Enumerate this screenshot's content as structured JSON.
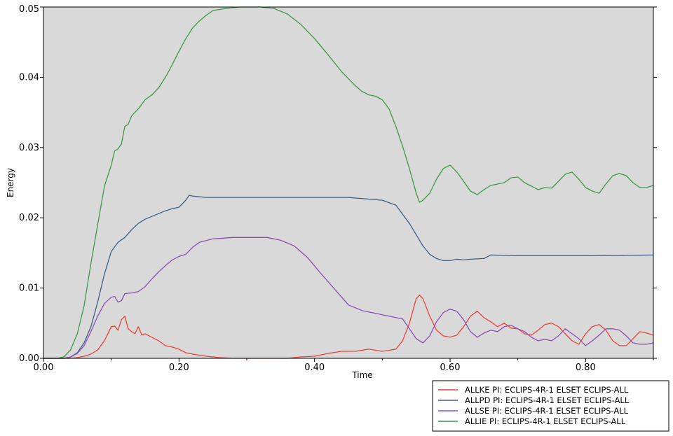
{
  "chart_data": {
    "type": "line",
    "xlabel": "Time",
    "ylabel": "Energy",
    "xlim": [
      0,
      0.9
    ],
    "ylim": [
      0,
      0.05
    ],
    "xticks": [
      "0.00",
      "0.20",
      "0.40",
      "0.60",
      "0.80"
    ],
    "xtick_values": [
      0,
      0.2,
      0.4,
      0.6,
      0.8
    ],
    "yticks": [
      "0.00",
      "0.01",
      "0.02",
      "0.03",
      "0.04",
      "0.05"
    ],
    "ytick_values": [
      0,
      0.01,
      0.02,
      0.03,
      0.04,
      0.05
    ],
    "legend_position": "bottom-right",
    "grid": false,
    "background": "#d9d9d9",
    "series": [
      {
        "name": "ALLKE PI: ECLIPS-4R-1 ELSET ECLIPS-ALL",
        "color": "#e8433a",
        "points": [
          [
            0,
            0
          ],
          [
            0.04,
            0
          ],
          [
            0.05,
            0.0001
          ],
          [
            0.06,
            0.0003
          ],
          [
            0.07,
            0.0006
          ],
          [
            0.08,
            0.0012
          ],
          [
            0.09,
            0.0025
          ],
          [
            0.1,
            0.0045
          ],
          [
            0.105,
            0.0046
          ],
          [
            0.11,
            0.004
          ],
          [
            0.115,
            0.0055
          ],
          [
            0.12,
            0.006
          ],
          [
            0.125,
            0.0042
          ],
          [
            0.13,
            0.0038
          ],
          [
            0.135,
            0.0035
          ],
          [
            0.14,
            0.0045
          ],
          [
            0.145,
            0.0033
          ],
          [
            0.15,
            0.0035
          ],
          [
            0.16,
            0.003
          ],
          [
            0.17,
            0.0025
          ],
          [
            0.18,
            0.0018
          ],
          [
            0.19,
            0.0016
          ],
          [
            0.2,
            0.0013
          ],
          [
            0.21,
            0.0008
          ],
          [
            0.22,
            0.0006
          ],
          [
            0.24,
            0.0003
          ],
          [
            0.26,
            0.0001
          ],
          [
            0.28,
            0
          ],
          [
            0.36,
            0
          ],
          [
            0.38,
            0.0002
          ],
          [
            0.4,
            0.0003
          ],
          [
            0.42,
            0.0007
          ],
          [
            0.44,
            0.001
          ],
          [
            0.46,
            0.001
          ],
          [
            0.48,
            0.0013
          ],
          [
            0.5,
            0.001
          ],
          [
            0.52,
            0.0013
          ],
          [
            0.53,
            0.0025
          ],
          [
            0.54,
            0.005
          ],
          [
            0.55,
            0.0085
          ],
          [
            0.555,
            0.009
          ],
          [
            0.56,
            0.0085
          ],
          [
            0.57,
            0.006
          ],
          [
            0.58,
            0.004
          ],
          [
            0.59,
            0.0032
          ],
          [
            0.6,
            0.003
          ],
          [
            0.61,
            0.0033
          ],
          [
            0.62,
            0.0045
          ],
          [
            0.63,
            0.006
          ],
          [
            0.64,
            0.0067
          ],
          [
            0.65,
            0.0058
          ],
          [
            0.66,
            0.0052
          ],
          [
            0.67,
            0.0045
          ],
          [
            0.68,
            0.005
          ],
          [
            0.69,
            0.0043
          ],
          [
            0.7,
            0.0042
          ],
          [
            0.71,
            0.0035
          ],
          [
            0.72,
            0.0033
          ],
          [
            0.73,
            0.004
          ],
          [
            0.74,
            0.0048
          ],
          [
            0.75,
            0.005
          ],
          [
            0.76,
            0.0045
          ],
          [
            0.77,
            0.0035
          ],
          [
            0.78,
            0.0025
          ],
          [
            0.79,
            0.002
          ],
          [
            0.8,
            0.0035
          ],
          [
            0.81,
            0.0045
          ],
          [
            0.82,
            0.0048
          ],
          [
            0.83,
            0.004
          ],
          [
            0.84,
            0.0025
          ],
          [
            0.85,
            0.0018
          ],
          [
            0.86,
            0.0018
          ],
          [
            0.87,
            0.0028
          ],
          [
            0.88,
            0.0038
          ],
          [
            0.89,
            0.0036
          ],
          [
            0.9,
            0.0033
          ]
        ]
      },
      {
        "name": "ALLPD PI: ECLIPS-4R-1 ELSET ECLIPS-ALL",
        "color": "#3f5f85",
        "points": [
          [
            0,
            0
          ],
          [
            0.03,
            0
          ],
          [
            0.04,
            0.0002
          ],
          [
            0.05,
            0.0008
          ],
          [
            0.06,
            0.0022
          ],
          [
            0.07,
            0.0045
          ],
          [
            0.08,
            0.008
          ],
          [
            0.09,
            0.012
          ],
          [
            0.1,
            0.0152
          ],
          [
            0.11,
            0.0165
          ],
          [
            0.12,
            0.0172
          ],
          [
            0.13,
            0.0183
          ],
          [
            0.14,
            0.0192
          ],
          [
            0.15,
            0.0198
          ],
          [
            0.16,
            0.0202
          ],
          [
            0.17,
            0.0206
          ],
          [
            0.18,
            0.021
          ],
          [
            0.19,
            0.0213
          ],
          [
            0.2,
            0.0215
          ],
          [
            0.21,
            0.0225
          ],
          [
            0.215,
            0.0232
          ],
          [
            0.22,
            0.0231
          ],
          [
            0.24,
            0.0229
          ],
          [
            0.3,
            0.0229
          ],
          [
            0.4,
            0.0229
          ],
          [
            0.45,
            0.0229
          ],
          [
            0.5,
            0.0225
          ],
          [
            0.52,
            0.0218
          ],
          [
            0.54,
            0.0192
          ],
          [
            0.56,
            0.016
          ],
          [
            0.57,
            0.0148
          ],
          [
            0.58,
            0.0142
          ],
          [
            0.59,
            0.0139
          ],
          [
            0.6,
            0.0139
          ],
          [
            0.61,
            0.0141
          ],
          [
            0.62,
            0.014
          ],
          [
            0.63,
            0.0141
          ],
          [
            0.65,
            0.0142
          ],
          [
            0.66,
            0.0147
          ],
          [
            0.7,
            0.0146
          ],
          [
            0.8,
            0.0146
          ],
          [
            0.9,
            0.0147
          ]
        ]
      },
      {
        "name": "ALLSE PI: ECLIPS-4R-1 ELSET ECLIPS-ALL",
        "color": "#8b4fb5",
        "points": [
          [
            0,
            0
          ],
          [
            0.03,
            0
          ],
          [
            0.04,
            0.0002
          ],
          [
            0.05,
            0.0007
          ],
          [
            0.06,
            0.0018
          ],
          [
            0.07,
            0.0038
          ],
          [
            0.08,
            0.006
          ],
          [
            0.09,
            0.0078
          ],
          [
            0.1,
            0.0087
          ],
          [
            0.105,
            0.0088
          ],
          [
            0.11,
            0.008
          ],
          [
            0.115,
            0.0082
          ],
          [
            0.12,
            0.0092
          ],
          [
            0.13,
            0.0093
          ],
          [
            0.14,
            0.0095
          ],
          [
            0.15,
            0.0102
          ],
          [
            0.16,
            0.0113
          ],
          [
            0.17,
            0.0123
          ],
          [
            0.18,
            0.0132
          ],
          [
            0.19,
            0.014
          ],
          [
            0.2,
            0.0145
          ],
          [
            0.21,
            0.0148
          ],
          [
            0.22,
            0.0158
          ],
          [
            0.23,
            0.0165
          ],
          [
            0.25,
            0.017
          ],
          [
            0.28,
            0.0172
          ],
          [
            0.33,
            0.0172
          ],
          [
            0.35,
            0.0168
          ],
          [
            0.37,
            0.016
          ],
          [
            0.39,
            0.0143
          ],
          [
            0.41,
            0.012
          ],
          [
            0.43,
            0.0098
          ],
          [
            0.45,
            0.0076
          ],
          [
            0.47,
            0.0068
          ],
          [
            0.49,
            0.0064
          ],
          [
            0.51,
            0.006
          ],
          [
            0.53,
            0.0056
          ],
          [
            0.54,
            0.0042
          ],
          [
            0.55,
            0.0028
          ],
          [
            0.56,
            0.0022
          ],
          [
            0.57,
            0.0032
          ],
          [
            0.58,
            0.0052
          ],
          [
            0.59,
            0.0065
          ],
          [
            0.6,
            0.007
          ],
          [
            0.61,
            0.0067
          ],
          [
            0.62,
            0.0055
          ],
          [
            0.63,
            0.0038
          ],
          [
            0.64,
            0.003
          ],
          [
            0.65,
            0.0036
          ],
          [
            0.66,
            0.004
          ],
          [
            0.67,
            0.0038
          ],
          [
            0.68,
            0.0045
          ],
          [
            0.69,
            0.0047
          ],
          [
            0.7,
            0.0042
          ],
          [
            0.71,
            0.0038
          ],
          [
            0.72,
            0.003
          ],
          [
            0.73,
            0.0025
          ],
          [
            0.74,
            0.0027
          ],
          [
            0.75,
            0.0025
          ],
          [
            0.76,
            0.0032
          ],
          [
            0.77,
            0.0042
          ],
          [
            0.78,
            0.0035
          ],
          [
            0.79,
            0.0028
          ],
          [
            0.8,
            0.0018
          ],
          [
            0.81,
            0.0025
          ],
          [
            0.82,
            0.0033
          ],
          [
            0.83,
            0.0042
          ],
          [
            0.84,
            0.0042
          ],
          [
            0.85,
            0.004
          ],
          [
            0.86,
            0.0032
          ],
          [
            0.87,
            0.0022
          ],
          [
            0.88,
            0.002
          ],
          [
            0.89,
            0.002
          ],
          [
            0.9,
            0.0022
          ]
        ]
      },
      {
        "name": "ALLIE PI: ECLIPS-4R-1 ELSET ECLIPS-ALL",
        "color": "#3e9a45",
        "points": [
          [
            0,
            0
          ],
          [
            0.02,
            0
          ],
          [
            0.03,
            0.0002
          ],
          [
            0.04,
            0.0012
          ],
          [
            0.05,
            0.0035
          ],
          [
            0.06,
            0.0075
          ],
          [
            0.07,
            0.0135
          ],
          [
            0.08,
            0.019
          ],
          [
            0.09,
            0.0245
          ],
          [
            0.1,
            0.0275
          ],
          [
            0.105,
            0.0295
          ],
          [
            0.11,
            0.0298
          ],
          [
            0.115,
            0.0305
          ],
          [
            0.12,
            0.033
          ],
          [
            0.125,
            0.0333
          ],
          [
            0.13,
            0.0345
          ],
          [
            0.14,
            0.0355
          ],
          [
            0.15,
            0.0368
          ],
          [
            0.16,
            0.0375
          ],
          [
            0.17,
            0.0385
          ],
          [
            0.18,
            0.04
          ],
          [
            0.19,
            0.0418
          ],
          [
            0.2,
            0.0437
          ],
          [
            0.21,
            0.0455
          ],
          [
            0.22,
            0.047
          ],
          [
            0.23,
            0.048
          ],
          [
            0.24,
            0.0488
          ],
          [
            0.25,
            0.0495
          ],
          [
            0.27,
            0.0498
          ],
          [
            0.29,
            0.05
          ],
          [
            0.32,
            0.05
          ],
          [
            0.34,
            0.0498
          ],
          [
            0.36,
            0.049
          ],
          [
            0.38,
            0.0475
          ],
          [
            0.4,
            0.0455
          ],
          [
            0.42,
            0.0432
          ],
          [
            0.44,
            0.0408
          ],
          [
            0.46,
            0.0388
          ],
          [
            0.47,
            0.038
          ],
          [
            0.48,
            0.0375
          ],
          [
            0.49,
            0.0373
          ],
          [
            0.5,
            0.0368
          ],
          [
            0.51,
            0.0355
          ],
          [
            0.52,
            0.033
          ],
          [
            0.53,
            0.0302
          ],
          [
            0.54,
            0.027
          ],
          [
            0.55,
            0.0235
          ],
          [
            0.555,
            0.0222
          ],
          [
            0.56,
            0.0225
          ],
          [
            0.57,
            0.0235
          ],
          [
            0.58,
            0.0255
          ],
          [
            0.59,
            0.027
          ],
          [
            0.6,
            0.0275
          ],
          [
            0.61,
            0.0265
          ],
          [
            0.62,
            0.0252
          ],
          [
            0.63,
            0.0238
          ],
          [
            0.64,
            0.0233
          ],
          [
            0.65,
            0.024
          ],
          [
            0.66,
            0.0246
          ],
          [
            0.67,
            0.0248
          ],
          [
            0.68,
            0.025
          ],
          [
            0.69,
            0.0257
          ],
          [
            0.7,
            0.0258
          ],
          [
            0.71,
            0.025
          ],
          [
            0.72,
            0.0245
          ],
          [
            0.73,
            0.024
          ],
          [
            0.74,
            0.0243
          ],
          [
            0.75,
            0.0242
          ],
          [
            0.76,
            0.0252
          ],
          [
            0.77,
            0.0262
          ],
          [
            0.78,
            0.0265
          ],
          [
            0.79,
            0.0255
          ],
          [
            0.8,
            0.0243
          ],
          [
            0.81,
            0.0238
          ],
          [
            0.82,
            0.0235
          ],
          [
            0.83,
            0.0248
          ],
          [
            0.84,
            0.026
          ],
          [
            0.85,
            0.0263
          ],
          [
            0.86,
            0.026
          ],
          [
            0.87,
            0.025
          ],
          [
            0.88,
            0.0243
          ],
          [
            0.89,
            0.0243
          ],
          [
            0.9,
            0.0246
          ]
        ]
      }
    ]
  }
}
